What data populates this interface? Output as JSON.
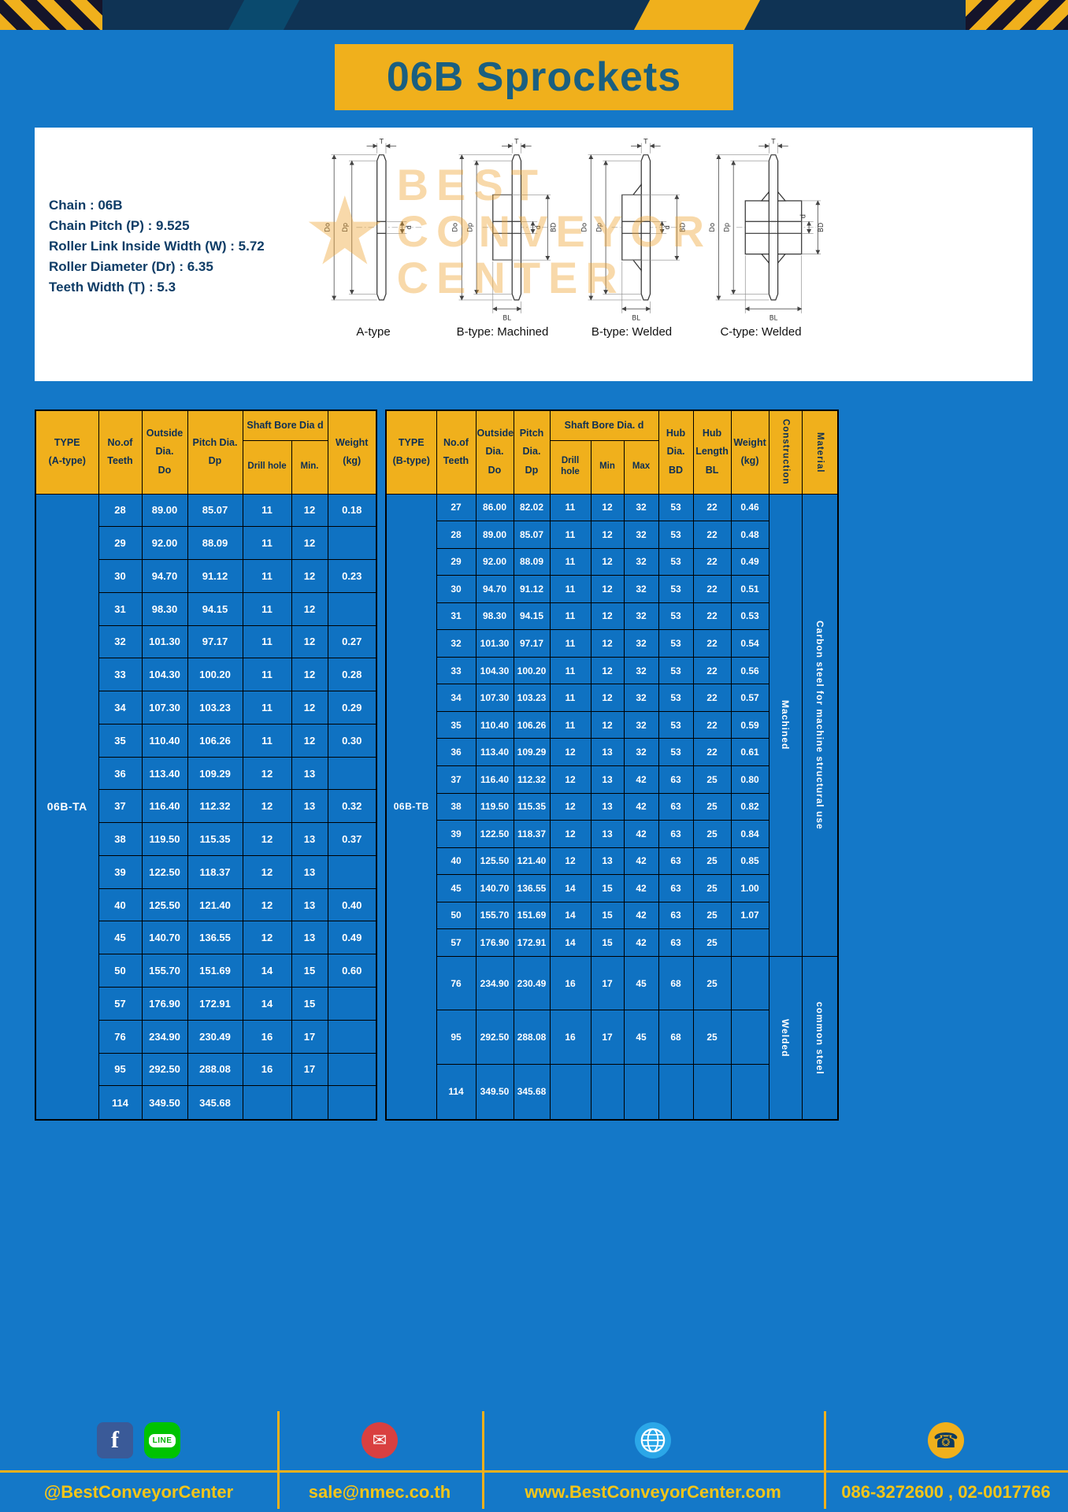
{
  "title": "06B Sprockets",
  "specs": [
    "Chain : 06B",
    "Chain Pitch (P) : 9.525",
    "Roller Link Inside Width (W) : 5.72",
    "Roller Diameter (Dr) : 6.35",
    "Teeth Width (T) : 5.3"
  ],
  "watermark": {
    "star": "★",
    "text": "BEST\nCONVEYOR\nCENTER"
  },
  "figures": {
    "captions": [
      "A-type",
      "B-type: Machined",
      "B-type: Welded",
      "C-type: Welded"
    ],
    "dims": {
      "t": "T",
      "outer": "Do",
      "pitch": "Dp",
      "bore": "d",
      "hub_dia": "BD",
      "hub_len": "BL"
    }
  },
  "table_a": {
    "type_value": "06B-TA",
    "headers": {
      "type": "TYPE\n(A-type)",
      "teeth": "No.of\nTeeth",
      "outside": "Outside\nDia.\nDo",
      "pitch": "Pitch Dia.\nDp",
      "bore_group": "Shaft Bore Dia d",
      "drill": "Drill hole",
      "min": "Min.",
      "weight": "Weight\n(kg)"
    },
    "rows": [
      {
        "teeth": "28",
        "od": "89.00",
        "pd": "85.07",
        "drill": "11",
        "min": "12",
        "wt": "0.18"
      },
      {
        "teeth": "29",
        "od": "92.00",
        "pd": "88.09",
        "drill": "11",
        "min": "12",
        "wt": ""
      },
      {
        "teeth": "30",
        "od": "94.70",
        "pd": "91.12",
        "drill": "11",
        "min": "12",
        "wt": "0.23"
      },
      {
        "teeth": "31",
        "od": "98.30",
        "pd": "94.15",
        "drill": "11",
        "min": "12",
        "wt": ""
      },
      {
        "teeth": "32",
        "od": "101.30",
        "pd": "97.17",
        "drill": "11",
        "min": "12",
        "wt": "0.27"
      },
      {
        "teeth": "33",
        "od": "104.30",
        "pd": "100.20",
        "drill": "11",
        "min": "12",
        "wt": "0.28"
      },
      {
        "teeth": "34",
        "od": "107.30",
        "pd": "103.23",
        "drill": "11",
        "min": "12",
        "wt": "0.29"
      },
      {
        "teeth": "35",
        "od": "110.40",
        "pd": "106.26",
        "drill": "11",
        "min": "12",
        "wt": "0.30"
      },
      {
        "teeth": "36",
        "od": "113.40",
        "pd": "109.29",
        "drill": "12",
        "min": "13",
        "wt": ""
      },
      {
        "teeth": "37",
        "od": "116.40",
        "pd": "112.32",
        "drill": "12",
        "min": "13",
        "wt": "0.32"
      },
      {
        "teeth": "38",
        "od": "119.50",
        "pd": "115.35",
        "drill": "12",
        "min": "13",
        "wt": "0.37"
      },
      {
        "teeth": "39",
        "od": "122.50",
        "pd": "118.37",
        "drill": "12",
        "min": "13",
        "wt": ""
      },
      {
        "teeth": "40",
        "od": "125.50",
        "pd": "121.40",
        "drill": "12",
        "min": "13",
        "wt": "0.40"
      },
      {
        "teeth": "45",
        "od": "140.70",
        "pd": "136.55",
        "drill": "12",
        "min": "13",
        "wt": "0.49"
      },
      {
        "teeth": "50",
        "od": "155.70",
        "pd": "151.69",
        "drill": "14",
        "min": "15",
        "wt": "0.60"
      },
      {
        "teeth": "57",
        "od": "176.90",
        "pd": "172.91",
        "drill": "14",
        "min": "15",
        "wt": ""
      },
      {
        "teeth": "76",
        "od": "234.90",
        "pd": "230.49",
        "drill": "16",
        "min": "17",
        "wt": ""
      },
      {
        "teeth": "95",
        "od": "292.50",
        "pd": "288.08",
        "drill": "16",
        "min": "17",
        "wt": ""
      },
      {
        "teeth": "114",
        "od": "349.50",
        "pd": "345.68",
        "drill": "",
        "min": "",
        "wt": ""
      }
    ]
  },
  "table_b": {
    "type_value": "06B-TB",
    "headers": {
      "type": "TYPE\n(B-type)",
      "teeth": "No.of\nTeeth",
      "outside": "Outside\nDia.\nDo",
      "pitch": "Pitch\nDia.\nDp",
      "bore_group": "Shaft Bore Dia. d",
      "drill": "Drill hole",
      "min": "Min",
      "max": "Max",
      "hub_dia": "Hub\nDia.\nBD",
      "hub_len": "Hub\nLength\nBL",
      "weight": "Weight\n(kg)",
      "construction": "Construction",
      "material": "Material"
    },
    "rows": [
      {
        "teeth": "27",
        "od": "86.00",
        "pd": "82.02",
        "drill": "11",
        "min": "12",
        "max": "32",
        "bd": "53",
        "bl": "22",
        "wt": "0.46"
      },
      {
        "teeth": "28",
        "od": "89.00",
        "pd": "85.07",
        "drill": "11",
        "min": "12",
        "max": "32",
        "bd": "53",
        "bl": "22",
        "wt": "0.48"
      },
      {
        "teeth": "29",
        "od": "92.00",
        "pd": "88.09",
        "drill": "11",
        "min": "12",
        "max": "32",
        "bd": "53",
        "bl": "22",
        "wt": "0.49"
      },
      {
        "teeth": "30",
        "od": "94.70",
        "pd": "91.12",
        "drill": "11",
        "min": "12",
        "max": "32",
        "bd": "53",
        "bl": "22",
        "wt": "0.51"
      },
      {
        "teeth": "31",
        "od": "98.30",
        "pd": "94.15",
        "drill": "11",
        "min": "12",
        "max": "32",
        "bd": "53",
        "bl": "22",
        "wt": "0.53"
      },
      {
        "teeth": "32",
        "od": "101.30",
        "pd": "97.17",
        "drill": "11",
        "min": "12",
        "max": "32",
        "bd": "53",
        "bl": "22",
        "wt": "0.54"
      },
      {
        "teeth": "33",
        "od": "104.30",
        "pd": "100.20",
        "drill": "11",
        "min": "12",
        "max": "32",
        "bd": "53",
        "bl": "22",
        "wt": "0.56"
      },
      {
        "teeth": "34",
        "od": "107.30",
        "pd": "103.23",
        "drill": "11",
        "min": "12",
        "max": "32",
        "bd": "53",
        "bl": "22",
        "wt": "0.57"
      },
      {
        "teeth": "35",
        "od": "110.40",
        "pd": "106.26",
        "drill": "11",
        "min": "12",
        "max": "32",
        "bd": "53",
        "bl": "22",
        "wt": "0.59"
      },
      {
        "teeth": "36",
        "od": "113.40",
        "pd": "109.29",
        "drill": "12",
        "min": "13",
        "max": "32",
        "bd": "53",
        "bl": "22",
        "wt": "0.61"
      },
      {
        "teeth": "37",
        "od": "116.40",
        "pd": "112.32",
        "drill": "12",
        "min": "13",
        "max": "42",
        "bd": "63",
        "bl": "25",
        "wt": "0.80"
      },
      {
        "teeth": "38",
        "od": "119.50",
        "pd": "115.35",
        "drill": "12",
        "min": "13",
        "max": "42",
        "bd": "63",
        "bl": "25",
        "wt": "0.82"
      },
      {
        "teeth": "39",
        "od": "122.50",
        "pd": "118.37",
        "drill": "12",
        "min": "13",
        "max": "42",
        "bd": "63",
        "bl": "25",
        "wt": "0.84"
      },
      {
        "teeth": "40",
        "od": "125.50",
        "pd": "121.40",
        "drill": "12",
        "min": "13",
        "max": "42",
        "bd": "63",
        "bl": "25",
        "wt": "0.85"
      },
      {
        "teeth": "45",
        "od": "140.70",
        "pd": "136.55",
        "drill": "14",
        "min": "15",
        "max": "42",
        "bd": "63",
        "bl": "25",
        "wt": "1.00"
      },
      {
        "teeth": "50",
        "od": "155.70",
        "pd": "151.69",
        "drill": "14",
        "min": "15",
        "max": "42",
        "bd": "63",
        "bl": "25",
        "wt": "1.07"
      },
      {
        "teeth": "57",
        "od": "176.90",
        "pd": "172.91",
        "drill": "14",
        "min": "15",
        "max": "42",
        "bd": "63",
        "bl": "25",
        "wt": ""
      },
      {
        "teeth": "76",
        "od": "234.90",
        "pd": "230.49",
        "drill": "16",
        "min": "17",
        "max": "45",
        "bd": "68",
        "bl": "25",
        "wt": ""
      },
      {
        "teeth": "95",
        "od": "292.50",
        "pd": "288.08",
        "drill": "16",
        "min": "17",
        "max": "45",
        "bd": "68",
        "bl": "25",
        "wt": ""
      },
      {
        "teeth": "114",
        "od": "349.50",
        "pd": "345.68",
        "drill": "",
        "min": "",
        "max": "",
        "bd": "",
        "bl": "",
        "wt": ""
      }
    ],
    "construction_groups": [
      {
        "label": "Machined",
        "rows": 17
      },
      {
        "label": "Welded",
        "rows": 3
      }
    ],
    "material_groups": [
      {
        "label": "Carbon steel for machine structural use",
        "rows": 17
      },
      {
        "label": "common steel",
        "rows": 3
      }
    ]
  },
  "footer": {
    "social": "@BestConveyorCenter",
    "email": "sale@nmec.co.th",
    "website": "www.BestConveyorCenter.com",
    "phone": "086-3272600 , 02-0017766",
    "facebook_glyph": "f",
    "line_glyph": "LINE",
    "email_glyph": "✉",
    "phone_glyph": "☎"
  },
  "colors": {
    "accent_yellow": "#f0b01c",
    "page_blue": "#1478c8",
    "cell_blue": "#0f72c2",
    "header_navy": "#0f3354",
    "title_text": "#1a5f80",
    "facebook_blue": "#3a5a98",
    "line_green": "#00c300",
    "mail_red": "#d94040",
    "globe_blue": "#2ba7e8"
  }
}
